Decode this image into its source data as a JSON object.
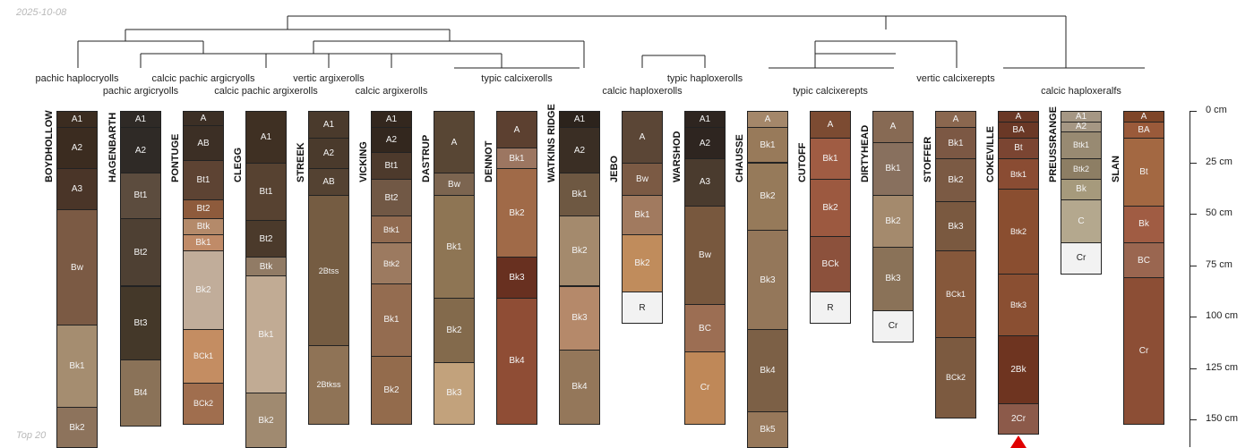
{
  "header": {
    "date": "2025-10-08",
    "caption": "Top 20"
  },
  "taxa": [
    "pachic haplocryolls",
    "pachic argicryolls",
    "calcic pachic argicryolls",
    "calcic pachic argixerolls",
    "vertic argixerolls",
    "calcic argixerolls",
    "typic calcixerolls",
    "calcic haploxerolls",
    "typic haploxerolls",
    "typic calcixerepts",
    "vertic calcixerepts",
    "calcic haploxeralfs"
  ],
  "depth_axis": {
    "unit": "cm",
    "ticks": [
      "0 cm",
      "25 cm",
      "50 cm",
      "75 cm",
      "100 cm",
      "125 cm",
      "150 cm"
    ],
    "values": [
      0,
      25,
      50,
      75,
      100,
      125,
      150
    ]
  },
  "profiles": [
    {
      "name": "BOYDHOLLOW",
      "horizons": [
        {
          "name": "A1",
          "top": 0,
          "bottom": 8,
          "color": "#3b2c20"
        },
        {
          "name": "A2",
          "top": 8,
          "bottom": 28,
          "color": "#3b2c20"
        },
        {
          "name": "A3",
          "top": 28,
          "bottom": 48,
          "color": "#4a3528"
        },
        {
          "name": "Bw",
          "top": 48,
          "bottom": 104,
          "color": "#7b5a44"
        },
        {
          "name": "Bk1",
          "top": 104,
          "bottom": 144,
          "color": "#a58d70"
        },
        {
          "name": "Bk2",
          "top": 144,
          "bottom": 170,
          "color": "#8d735c"
        }
      ]
    },
    {
      "name": "HAGENBARTH",
      "horizons": [
        {
          "name": "A1",
          "top": 0,
          "bottom": 8,
          "color": "#2f2a26"
        },
        {
          "name": "A2",
          "top": 8,
          "bottom": 30,
          "color": "#2f2a26"
        },
        {
          "name": "Bt1",
          "top": 30,
          "bottom": 52,
          "color": "#5c4c3e"
        },
        {
          "name": "Bt2",
          "top": 52,
          "bottom": 85,
          "color": "#4e4033"
        },
        {
          "name": "Bt3",
          "top": 85,
          "bottom": 121,
          "color": "#443829"
        },
        {
          "name": "Bt4",
          "top": 121,
          "bottom": 153,
          "color": "#8a7258"
        }
      ]
    },
    {
      "name": "PONTUGE",
      "horizons": [
        {
          "name": "A",
          "top": 0,
          "bottom": 7,
          "color": "#3c2f25"
        },
        {
          "name": "AB",
          "top": 7,
          "bottom": 24,
          "color": "#3c2f25"
        },
        {
          "name": "Bt1",
          "top": 24,
          "bottom": 43,
          "color": "#5d4333"
        },
        {
          "name": "Bt2",
          "top": 43,
          "bottom": 52,
          "color": "#8e5b3c"
        },
        {
          "name": "Btk",
          "top": 52,
          "bottom": 60,
          "color": "#b48a6a"
        },
        {
          "name": "Bk1",
          "top": 60,
          "bottom": 68,
          "color": "#c08b68"
        },
        {
          "name": "Bk2",
          "top": 68,
          "bottom": 106,
          "color": "#c1ad9a"
        },
        {
          "name": "BCk1",
          "top": 106,
          "bottom": 132,
          "color": "#c48d62"
        },
        {
          "name": "BCk2",
          "top": 132,
          "bottom": 152,
          "color": "#a06e4e"
        }
      ]
    },
    {
      "name": "CLEGG",
      "horizons": [
        {
          "name": "A1",
          "top": 0,
          "bottom": 25,
          "color": "#3f3023"
        },
        {
          "name": "Bt1",
          "top": 25,
          "bottom": 53,
          "color": "#574231"
        },
        {
          "name": "Bt2",
          "top": 53,
          "bottom": 71,
          "color": "#4b3a2b"
        },
        {
          "name": "Btk",
          "top": 71,
          "bottom": 80,
          "color": "#917b65"
        },
        {
          "name": "Bk1",
          "top": 80,
          "bottom": 137,
          "color": "#c1ab94"
        },
        {
          "name": "Bk2",
          "top": 137,
          "bottom": 170,
          "color": "#a08a70"
        }
      ]
    },
    {
      "name": "STREEK",
      "horizons": [
        {
          "name": "A1",
          "top": 0,
          "bottom": 13,
          "color": "#4a3a2c"
        },
        {
          "name": "A2",
          "top": 13,
          "bottom": 28,
          "color": "#4a3a2c"
        },
        {
          "name": "AB",
          "top": 28,
          "bottom": 41,
          "color": "#544232"
        },
        {
          "name": "2Btss",
          "top": 41,
          "bottom": 114,
          "color": "#755c42"
        },
        {
          "name": "2Btkss",
          "top": 114,
          "bottom": 152,
          "color": "#8f7356"
        }
      ]
    },
    {
      "name": "VICKING",
      "horizons": [
        {
          "name": "A1",
          "top": 0,
          "bottom": 8,
          "color": "#33271e"
        },
        {
          "name": "A2",
          "top": 8,
          "bottom": 20,
          "color": "#33271e"
        },
        {
          "name": "Bt1",
          "top": 20,
          "bottom": 33,
          "color": "#4d3a2c"
        },
        {
          "name": "Bt2",
          "top": 33,
          "bottom": 51,
          "color": "#715845"
        },
        {
          "name": "Btk1",
          "top": 51,
          "bottom": 64,
          "color": "#906a50"
        },
        {
          "name": "Btk2",
          "top": 64,
          "bottom": 84,
          "color": "#9c7a60"
        },
        {
          "name": "Bk1",
          "top": 84,
          "bottom": 119,
          "color": "#946c50"
        },
        {
          "name": "Bk2",
          "top": 119,
          "bottom": 152,
          "color": "#936b4c"
        }
      ]
    },
    {
      "name": "DASTRUP",
      "horizons": [
        {
          "name": "A",
          "top": 0,
          "bottom": 30,
          "color": "#584634"
        },
        {
          "name": "Bw",
          "top": 30,
          "bottom": 41,
          "color": "#7c6550"
        },
        {
          "name": "Bk1",
          "top": 41,
          "bottom": 91,
          "color": "#8e7554"
        },
        {
          "name": "Bk2",
          "top": 91,
          "bottom": 122,
          "color": "#836a4c"
        },
        {
          "name": "Bk3",
          "top": 122,
          "bottom": 152,
          "color": "#c2a27c"
        }
      ]
    },
    {
      "name": "DENNOT",
      "horizons": [
        {
          "name": "A",
          "top": 0,
          "bottom": 18,
          "color": "#5c4030"
        },
        {
          "name": "Bk1",
          "top": 18,
          "bottom": 28,
          "color": "#9c7661"
        },
        {
          "name": "Bk2",
          "top": 28,
          "bottom": 71,
          "color": "#a06a48"
        },
        {
          "name": "Bk3",
          "top": 71,
          "bottom": 91,
          "color": "#683020"
        },
        {
          "name": "Bk4",
          "top": 91,
          "bottom": 152,
          "color": "#8f4d35"
        }
      ]
    },
    {
      "name": "WATKINS RIDGE",
      "horizons": [
        {
          "name": "A1",
          "top": 0,
          "bottom": 8,
          "color": "#2c231c"
        },
        {
          "name": "A2",
          "top": 8,
          "bottom": 30,
          "color": "#3a2e24"
        },
        {
          "name": "Bk1",
          "top": 30,
          "bottom": 51,
          "color": "#6e5842"
        },
        {
          "name": "Bk2",
          "top": 51,
          "bottom": 85,
          "color": "#a48a6d"
        },
        {
          "name": "Bk3",
          "top": 85,
          "bottom": 116,
          "color": "#b5896a"
        },
        {
          "name": "Bk4",
          "top": 116,
          "bottom": 152,
          "color": "#94775a"
        }
      ]
    },
    {
      "name": "JEBO",
      "horizons": [
        {
          "name": "A",
          "top": 0,
          "bottom": 25,
          "color": "#5b4636"
        },
        {
          "name": "Bw",
          "top": 25,
          "bottom": 41,
          "color": "#7b5a44"
        },
        {
          "name": "Bk1",
          "top": 41,
          "bottom": 60,
          "color": "#a17a5f"
        },
        {
          "name": "Bk2",
          "top": 60,
          "bottom": 88,
          "color": "#c08c5c"
        },
        {
          "name": "R",
          "top": 88,
          "bottom": 103,
          "color": "#f2f2f2"
        }
      ]
    },
    {
      "name": "WARSHOD",
      "horizons": [
        {
          "name": "A1",
          "top": 0,
          "bottom": 8,
          "color": "#2e2520"
        },
        {
          "name": "A2",
          "top": 8,
          "bottom": 23,
          "color": "#2e2520"
        },
        {
          "name": "A3",
          "top": 23,
          "bottom": 46,
          "color": "#4a3b2e"
        },
        {
          "name": "Bw",
          "top": 46,
          "bottom": 94,
          "color": "#78583e"
        },
        {
          "name": "BC",
          "top": 94,
          "bottom": 117,
          "color": "#9c6e53"
        },
        {
          "name": "Cr",
          "top": 117,
          "bottom": 152,
          "color": "#bf8858"
        }
      ]
    },
    {
      "name": "CHAUSSE",
      "horizons": [
        {
          "name": "A",
          "top": 0,
          "bottom": 8,
          "color": "#a4876a"
        },
        {
          "name": "Bk1",
          "top": 8,
          "bottom": 25,
          "color": "#987a5a"
        },
        {
          "name": "Bk2",
          "top": 25,
          "bottom": 58,
          "color": "#967a5a"
        },
        {
          "name": "Bk3",
          "top": 58,
          "bottom": 106,
          "color": "#94775a"
        },
        {
          "name": "Bk4",
          "top": 106,
          "bottom": 146,
          "color": "#7c6046"
        },
        {
          "name": "Bk5",
          "top": 146,
          "bottom": 170,
          "color": "#97785a"
        }
      ]
    },
    {
      "name": "CUTOFF",
      "horizons": [
        {
          "name": "A",
          "top": 0,
          "bottom": 13,
          "color": "#7c4b32"
        },
        {
          "name": "Bk1",
          "top": 13,
          "bottom": 33,
          "color": "#a05c43"
        },
        {
          "name": "Bk2",
          "top": 33,
          "bottom": 61,
          "color": "#9c5940"
        },
        {
          "name": "BCk",
          "top": 61,
          "bottom": 88,
          "color": "#8c513c"
        },
        {
          "name": "R",
          "top": 88,
          "bottom": 103,
          "color": "#f2f2f2"
        }
      ]
    },
    {
      "name": "DIRTYHEAD",
      "horizons": [
        {
          "name": "A",
          "top": 0,
          "bottom": 15,
          "color": "#876a54"
        },
        {
          "name": "Bk1",
          "top": 15,
          "bottom": 41,
          "color": "#88705e"
        },
        {
          "name": "Bk2",
          "top": 41,
          "bottom": 66,
          "color": "#a48a6d"
        },
        {
          "name": "Bk3",
          "top": 66,
          "bottom": 97,
          "color": "#8a7258"
        },
        {
          "name": "Cr",
          "top": 97,
          "bottom": 112,
          "color": "#f2f2f2"
        }
      ]
    },
    {
      "name": "STOFFER",
      "horizons": [
        {
          "name": "A",
          "top": 0,
          "bottom": 8,
          "color": "#8a674f"
        },
        {
          "name": "Bk1",
          "top": 8,
          "bottom": 23,
          "color": "#7c5844"
        },
        {
          "name": "Bk2",
          "top": 23,
          "bottom": 44,
          "color": "#7b5a44"
        },
        {
          "name": "Bk3",
          "top": 44,
          "bottom": 68,
          "color": "#7a5940"
        },
        {
          "name": "BCk1",
          "top": 68,
          "bottom": 110,
          "color": "#86583b"
        },
        {
          "name": "BCk2",
          "top": 110,
          "bottom": 149,
          "color": "#7c5a40"
        }
      ]
    },
    {
      "name": "COKEVILLE",
      "horizons": [
        {
          "name": "A",
          "top": 0,
          "bottom": 5,
          "color": "#6a3826"
        },
        {
          "name": "BA",
          "top": 5,
          "bottom": 13,
          "color": "#6a3826"
        },
        {
          "name": "Bt",
          "top": 13,
          "bottom": 23,
          "color": "#7b4532"
        },
        {
          "name": "Btk1",
          "top": 23,
          "bottom": 38,
          "color": "#8a4c33"
        },
        {
          "name": "Btk2",
          "top": 38,
          "bottom": 79,
          "color": "#8a4e30"
        },
        {
          "name": "Btk3",
          "top": 79,
          "bottom": 109,
          "color": "#8a4f32"
        },
        {
          "name": "2Bk",
          "top": 109,
          "bottom": 142,
          "color": "#6e3420"
        },
        {
          "name": "2Cr",
          "top": 142,
          "bottom": 157,
          "color": "#8c5a4a"
        }
      ]
    },
    {
      "name": "PREUSSRANGE",
      "horizons": [
        {
          "name": "A1",
          "top": 0,
          "bottom": 5,
          "color": "#a59784"
        },
        {
          "name": "A2",
          "top": 5,
          "bottom": 10,
          "color": "#a59784"
        },
        {
          "name": "Btk1",
          "top": 10,
          "bottom": 23,
          "color": "#988a72"
        },
        {
          "name": "Btk2",
          "top": 23,
          "bottom": 33,
          "color": "#8d7e64"
        },
        {
          "name": "Bk",
          "top": 33,
          "bottom": 43,
          "color": "#a69a7c"
        },
        {
          "name": "C",
          "top": 43,
          "bottom": 64,
          "color": "#b4a88e"
        },
        {
          "name": "Cr",
          "top": 64,
          "bottom": 79,
          "color": "#f2f2f2"
        }
      ]
    },
    {
      "name": "SLAN",
      "horizons": [
        {
          "name": "A",
          "top": 0,
          "bottom": 5,
          "color": "#7e4528"
        },
        {
          "name": "BA",
          "top": 5,
          "bottom": 13,
          "color": "#9a5a3a"
        },
        {
          "name": "Bt",
          "top": 13,
          "bottom": 46,
          "color": "#a36842"
        },
        {
          "name": "Bk",
          "top": 46,
          "bottom": 64,
          "color": "#a05c43"
        },
        {
          "name": "BC",
          "top": 64,
          "bottom": 81,
          "color": "#9a6650"
        },
        {
          "name": "Cr",
          "top": 81,
          "bottom": 152,
          "color": "#8c4e35"
        }
      ]
    }
  ],
  "colors": {
    "line": "#222222",
    "label": "#222222",
    "truncation": "#e00000",
    "corner_text": "#b9b9b9"
  }
}
